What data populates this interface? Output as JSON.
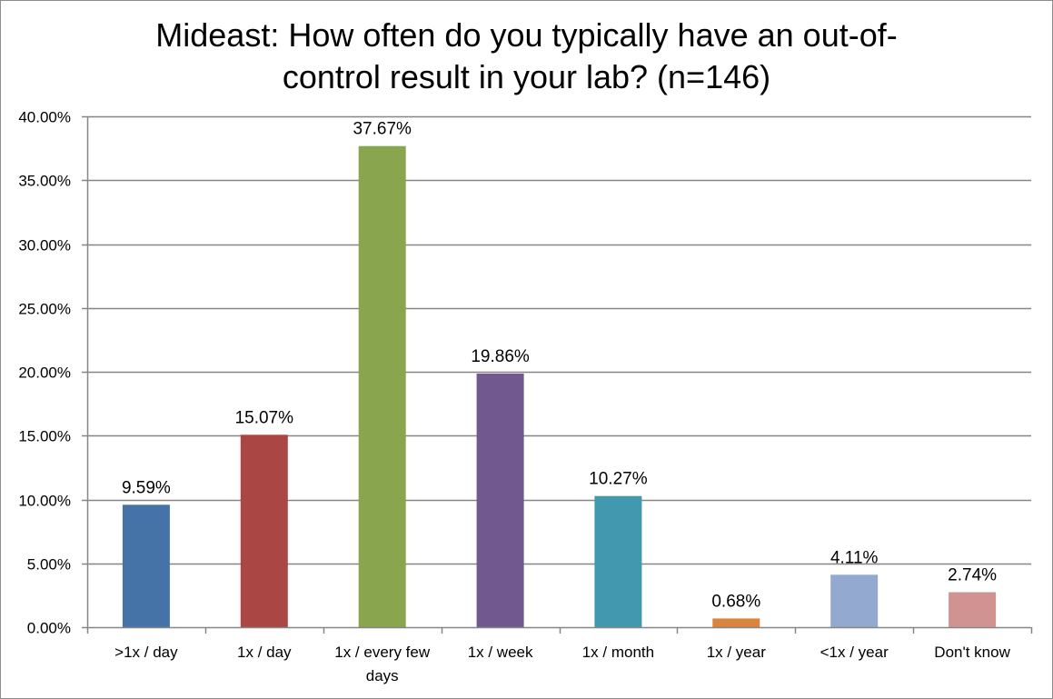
{
  "chart_data": {
    "type": "bar",
    "title_lines": [
      "Mideast: How often do you typically have an out-of-",
      "control result in your lab? (n=146)"
    ],
    "categories": [
      ">1x / day",
      "1x / day",
      "1x / every few days",
      "1x / week",
      "1x / month",
      "1x / year",
      "<1x / year",
      "Don't know"
    ],
    "category_lines": [
      [
        ">1x / day"
      ],
      [
        "1x / day"
      ],
      [
        "1x / every few",
        "days"
      ],
      [
        "1x / week"
      ],
      [
        "1x / month"
      ],
      [
        "1x / year"
      ],
      [
        "<1x / year"
      ],
      [
        "Don't know"
      ]
    ],
    "values": [
      9.59,
      15.07,
      37.67,
      19.86,
      10.27,
      0.68,
      4.11,
      2.74
    ],
    "data_labels": [
      "9.59%",
      "15.07%",
      "37.67%",
      "19.86%",
      "10.27%",
      "0.68%",
      "4.11%",
      "2.74%"
    ],
    "colors": [
      "#4572a7",
      "#aa4643",
      "#89a54e",
      "#71588f",
      "#4198af",
      "#db843d",
      "#93a9cf",
      "#d19392"
    ],
    "ylim": [
      0,
      40
    ],
    "yticks": [
      0,
      5,
      10,
      15,
      20,
      25,
      30,
      35,
      40
    ],
    "ytick_labels": [
      "0.00%",
      "5.00%",
      "10.00%",
      "15.00%",
      "20.00%",
      "25.00%",
      "30.00%",
      "35.00%",
      "40.00%"
    ],
    "xlabel": "",
    "ylabel": "",
    "grid": true,
    "legend": "none"
  }
}
